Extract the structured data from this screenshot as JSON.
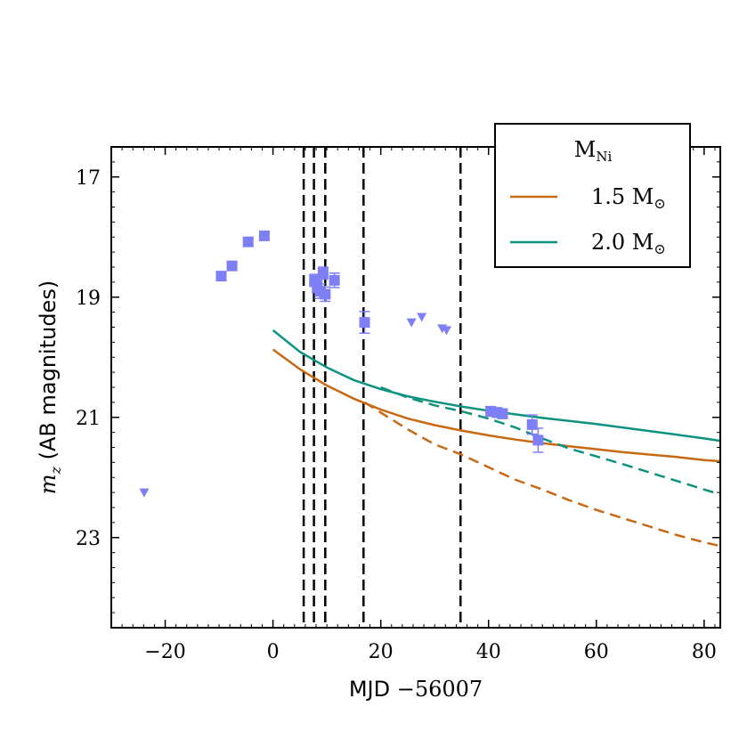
{
  "chart_data": {
    "type": "scatter",
    "xlabel_prefix": "MJD ",
    "xlabel_suffix": "−56007",
    "ylabel_symbol": "m",
    "ylabel_subscript": "z",
    "ylabel_text": " (AB magnitudes)",
    "xlim": [
      -30,
      83
    ],
    "ylim": [
      24.5,
      16.5
    ],
    "x_ticks": [
      -20,
      0,
      20,
      40,
      60,
      80
    ],
    "x_tick_labels": [
      "−20",
      "0",
      "20",
      "40",
      "60",
      "80"
    ],
    "y_ticks": [
      17,
      19,
      21,
      23
    ],
    "y_tick_labels": [
      "17",
      "19",
      "21",
      "23"
    ],
    "x_minor_step": 2,
    "y_minor_step": 0.25,
    "vertical_lines": [
      5.7,
      7.6,
      9.7,
      16.8,
      34.8
    ],
    "detections": [
      {
        "x": -9.6,
        "y": 18.65,
        "err": 0.07
      },
      {
        "x": -7.6,
        "y": 18.48,
        "err": 0.06
      },
      {
        "x": -4.6,
        "y": 18.08,
        "err": 0.06
      },
      {
        "x": -1.6,
        "y": 17.98,
        "err": 0.05
      },
      {
        "x": 7.7,
        "y": 18.72,
        "err": 0.1
      },
      {
        "x": 8.2,
        "y": 18.82,
        "err": 0.1
      },
      {
        "x": 8.7,
        "y": 18.9,
        "err": 0.12
      },
      {
        "x": 9.3,
        "y": 18.6,
        "err": 0.1
      },
      {
        "x": 9.7,
        "y": 18.95,
        "err": 0.12
      },
      {
        "x": 11.4,
        "y": 18.72,
        "err": 0.12
      },
      {
        "x": 17.0,
        "y": 19.42,
        "err": 0.18
      },
      {
        "x": 40.4,
        "y": 20.9,
        "err": 0.08
      },
      {
        "x": 41.6,
        "y": 20.92,
        "err": 0.08
      },
      {
        "x": 42.6,
        "y": 20.94,
        "err": 0.08
      },
      {
        "x": 48.1,
        "y": 21.12,
        "err": 0.16
      },
      {
        "x": 49.2,
        "y": 21.38,
        "err": 0.2
      }
    ],
    "upper_limits": [
      {
        "x": -23.9,
        "y": 22.25
      },
      {
        "x": 25.7,
        "y": 19.42
      },
      {
        "x": 27.6,
        "y": 19.33
      },
      {
        "x": 31.4,
        "y": 19.52
      },
      {
        "x": 32.2,
        "y": 19.55
      }
    ],
    "series": [
      {
        "name": "1.5 M⊙",
        "style": "solid",
        "color": "#c96813",
        "x": [
          0,
          5,
          10,
          15,
          20,
          25,
          30,
          35,
          40,
          45,
          50,
          55,
          60,
          65,
          70,
          75,
          80,
          83
        ],
        "y": [
          19.87,
          20.2,
          20.47,
          20.69,
          20.87,
          21.02,
          21.13,
          21.22,
          21.3,
          21.37,
          21.43,
          21.48,
          21.53,
          21.58,
          21.62,
          21.66,
          21.71,
          21.73
        ]
      },
      {
        "name": "2.0 M⊙",
        "style": "solid",
        "color": "#0e9280",
        "x": [
          0,
          5,
          10,
          15,
          20,
          25,
          30,
          35,
          40,
          45,
          50,
          55,
          60,
          65,
          70,
          75,
          80,
          83
        ],
        "y": [
          19.55,
          19.91,
          20.17,
          20.38,
          20.53,
          20.65,
          20.74,
          20.82,
          20.89,
          20.95,
          21.01,
          21.06,
          21.11,
          21.17,
          21.23,
          21.29,
          21.35,
          21.39
        ]
      },
      {
        "name": "1.5 M⊙ (dashed)",
        "style": "dashed",
        "color": "#c96813",
        "x": [
          17,
          20,
          25,
          30,
          35,
          40,
          45,
          50,
          55,
          60,
          65,
          70,
          75,
          80,
          83
        ],
        "y": [
          20.75,
          20.92,
          21.2,
          21.45,
          21.62,
          21.83,
          22.04,
          22.2,
          22.38,
          22.54,
          22.68,
          22.82,
          22.96,
          23.08,
          23.14
        ]
      },
      {
        "name": "2.0 M⊙ (dashed)",
        "style": "dashed",
        "color": "#0e9280",
        "x": [
          20,
          25,
          30,
          35,
          40,
          45,
          50,
          55,
          60,
          65,
          70,
          75,
          80,
          83
        ],
        "y": [
          20.5,
          20.67,
          20.8,
          20.9,
          21.02,
          21.17,
          21.35,
          21.52,
          21.65,
          21.78,
          21.92,
          22.06,
          22.2,
          22.28
        ]
      }
    ],
    "legend": {
      "placement": "top-right",
      "title_main": "M",
      "title_sub": "Ni",
      "entries": [
        {
          "label": "1.5 M",
          "symbol": "⊙",
          "color": "#c96813"
        },
        {
          "label": "2.0 M",
          "symbol": "⊙",
          "color": "#0e9280"
        }
      ]
    },
    "colors": {
      "marker": "#7f7ff5",
      "vline": "#000000",
      "axes": "#000000"
    }
  }
}
